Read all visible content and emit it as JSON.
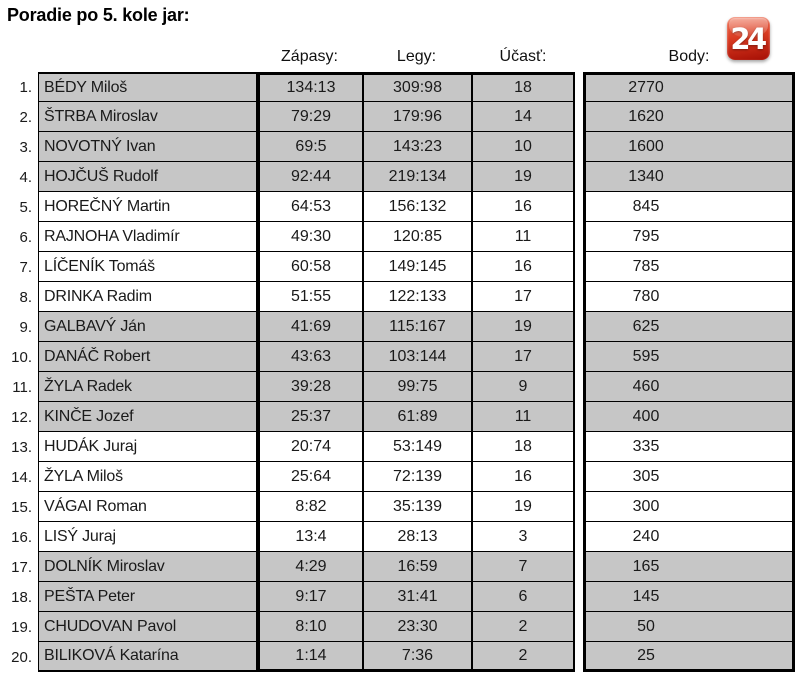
{
  "title": "Poradie po 5. kole jar:",
  "logo": {
    "text": "24"
  },
  "columns": {
    "zapasy": "Zápasy:",
    "legy": "Legy:",
    "ucast": "Účasť:",
    "body": "Body:"
  },
  "colors": {
    "row_shaded": "#c6c6c6",
    "row_plain": "#ffffff",
    "grid_line": "#000000",
    "logo_top": "#ef6f52",
    "logo_bottom": "#a50e04",
    "logo_text": "#ffffff"
  },
  "standings": [
    {
      "rank": "1.",
      "name": "BÉDY Miloš",
      "zapasy": "134:13",
      "legy": "309:98",
      "ucast": "18",
      "body": "2770",
      "shaded": true
    },
    {
      "rank": "2.",
      "name": "ŠTRBA Miroslav",
      "zapasy": "79:29",
      "legy": "179:96",
      "ucast": "14",
      "body": "1620",
      "shaded": true
    },
    {
      "rank": "3.",
      "name": "NOVOTNÝ Ivan",
      "zapasy": "69:5",
      "legy": "143:23",
      "ucast": "10",
      "body": "1600",
      "shaded": true
    },
    {
      "rank": "4.",
      "name": "HOJČUŠ Rudolf",
      "zapasy": "92:44",
      "legy": "219:134",
      "ucast": "19",
      "body": "1340",
      "shaded": true
    },
    {
      "rank": "5.",
      "name": "HOREČNÝ Martin",
      "zapasy": "64:53",
      "legy": "156:132",
      "ucast": "16",
      "body": "845",
      "shaded": false
    },
    {
      "rank": "6.",
      "name": "RAJNOHA Vladimír",
      "zapasy": "49:30",
      "legy": "120:85",
      "ucast": "11",
      "body": "795",
      "shaded": false
    },
    {
      "rank": "7.",
      "name": "LÍČENÍK Tomáš",
      "zapasy": "60:58",
      "legy": "149:145",
      "ucast": "16",
      "body": "785",
      "shaded": false
    },
    {
      "rank": "8.",
      "name": "DRINKA Radim",
      "zapasy": "51:55",
      "legy": "122:133",
      "ucast": "17",
      "body": "780",
      "shaded": false
    },
    {
      "rank": "9.",
      "name": "GALBAVÝ Ján",
      "zapasy": "41:69",
      "legy": "115:167",
      "ucast": "19",
      "body": "625",
      "shaded": true
    },
    {
      "rank": "10.",
      "name": "DANÁČ Robert",
      "zapasy": "43:63",
      "legy": "103:144",
      "ucast": "17",
      "body": "595",
      "shaded": true
    },
    {
      "rank": "11.",
      "name": "ŽYLA Radek",
      "zapasy": "39:28",
      "legy": "99:75",
      "ucast": "9",
      "body": "460",
      "shaded": true
    },
    {
      "rank": "12.",
      "name": "KINČE Jozef",
      "zapasy": "25:37",
      "legy": "61:89",
      "ucast": "11",
      "body": "400",
      "shaded": true
    },
    {
      "rank": "13.",
      "name": "HUDÁK Juraj",
      "zapasy": "20:74",
      "legy": "53:149",
      "ucast": "18",
      "body": "335",
      "shaded": false
    },
    {
      "rank": "14.",
      "name": "ŽYLA Miloš",
      "zapasy": "25:64",
      "legy": "72:139",
      "ucast": "16",
      "body": "305",
      "shaded": false
    },
    {
      "rank": "15.",
      "name": "VÁGAI Roman",
      "zapasy": "8:82",
      "legy": "35:139",
      "ucast": "19",
      "body": "300",
      "shaded": false
    },
    {
      "rank": "16.",
      "name": "LISÝ Juraj",
      "zapasy": "13:4",
      "legy": "28:13",
      "ucast": "3",
      "body": "240",
      "shaded": false
    },
    {
      "rank": "17.",
      "name": "DOLNÍK Miroslav",
      "zapasy": "4:29",
      "legy": "16:59",
      "ucast": "7",
      "body": "165",
      "shaded": true
    },
    {
      "rank": "18.",
      "name": "PEŠTA Peter",
      "zapasy": "9:17",
      "legy": "31:41",
      "ucast": "6",
      "body": "145",
      "shaded": true
    },
    {
      "rank": "19.",
      "name": "CHUDOVAN Pavol",
      "zapasy": "8:10",
      "legy": "23:30",
      "ucast": "2",
      "body": "50",
      "shaded": true
    },
    {
      "rank": "20.",
      "name": "BILIKOVÁ Katarína",
      "zapasy": "1:14",
      "legy": "7:36",
      "ucast": "2",
      "body": "25",
      "shaded": true
    }
  ]
}
